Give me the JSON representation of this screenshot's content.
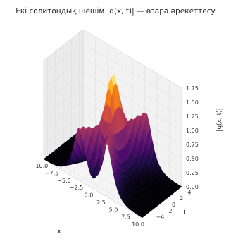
{
  "chart_data": {
    "type": "surface",
    "title": "Екі солитондық шешім |q(x, t)| — өзара әрекеттесу",
    "xlabel": "x",
    "ylabel": "t",
    "zlabel": "|q(x, t)|",
    "xlim": [
      -10,
      10
    ],
    "ylim": [
      -5,
      5
    ],
    "zlim": [
      0,
      1.75
    ],
    "x_ticks": [
      "−10.0",
      "−7.5",
      "−5.0",
      "−2.5",
      "0.0",
      "2.5",
      "5.0",
      "7.5",
      "10.0"
    ],
    "y_ticks": [
      "−4",
      "−2",
      "0",
      "2",
      "4"
    ],
    "z_ticks": [
      "0.00",
      "0.25",
      "0.50",
      "0.75",
      "1.00",
      "1.25",
      "1.50",
      "1.75"
    ],
    "colormap": "inferno",
    "peak_value": 1.6,
    "peak_location": {
      "x": 0,
      "t": 0
    },
    "grid": true
  }
}
